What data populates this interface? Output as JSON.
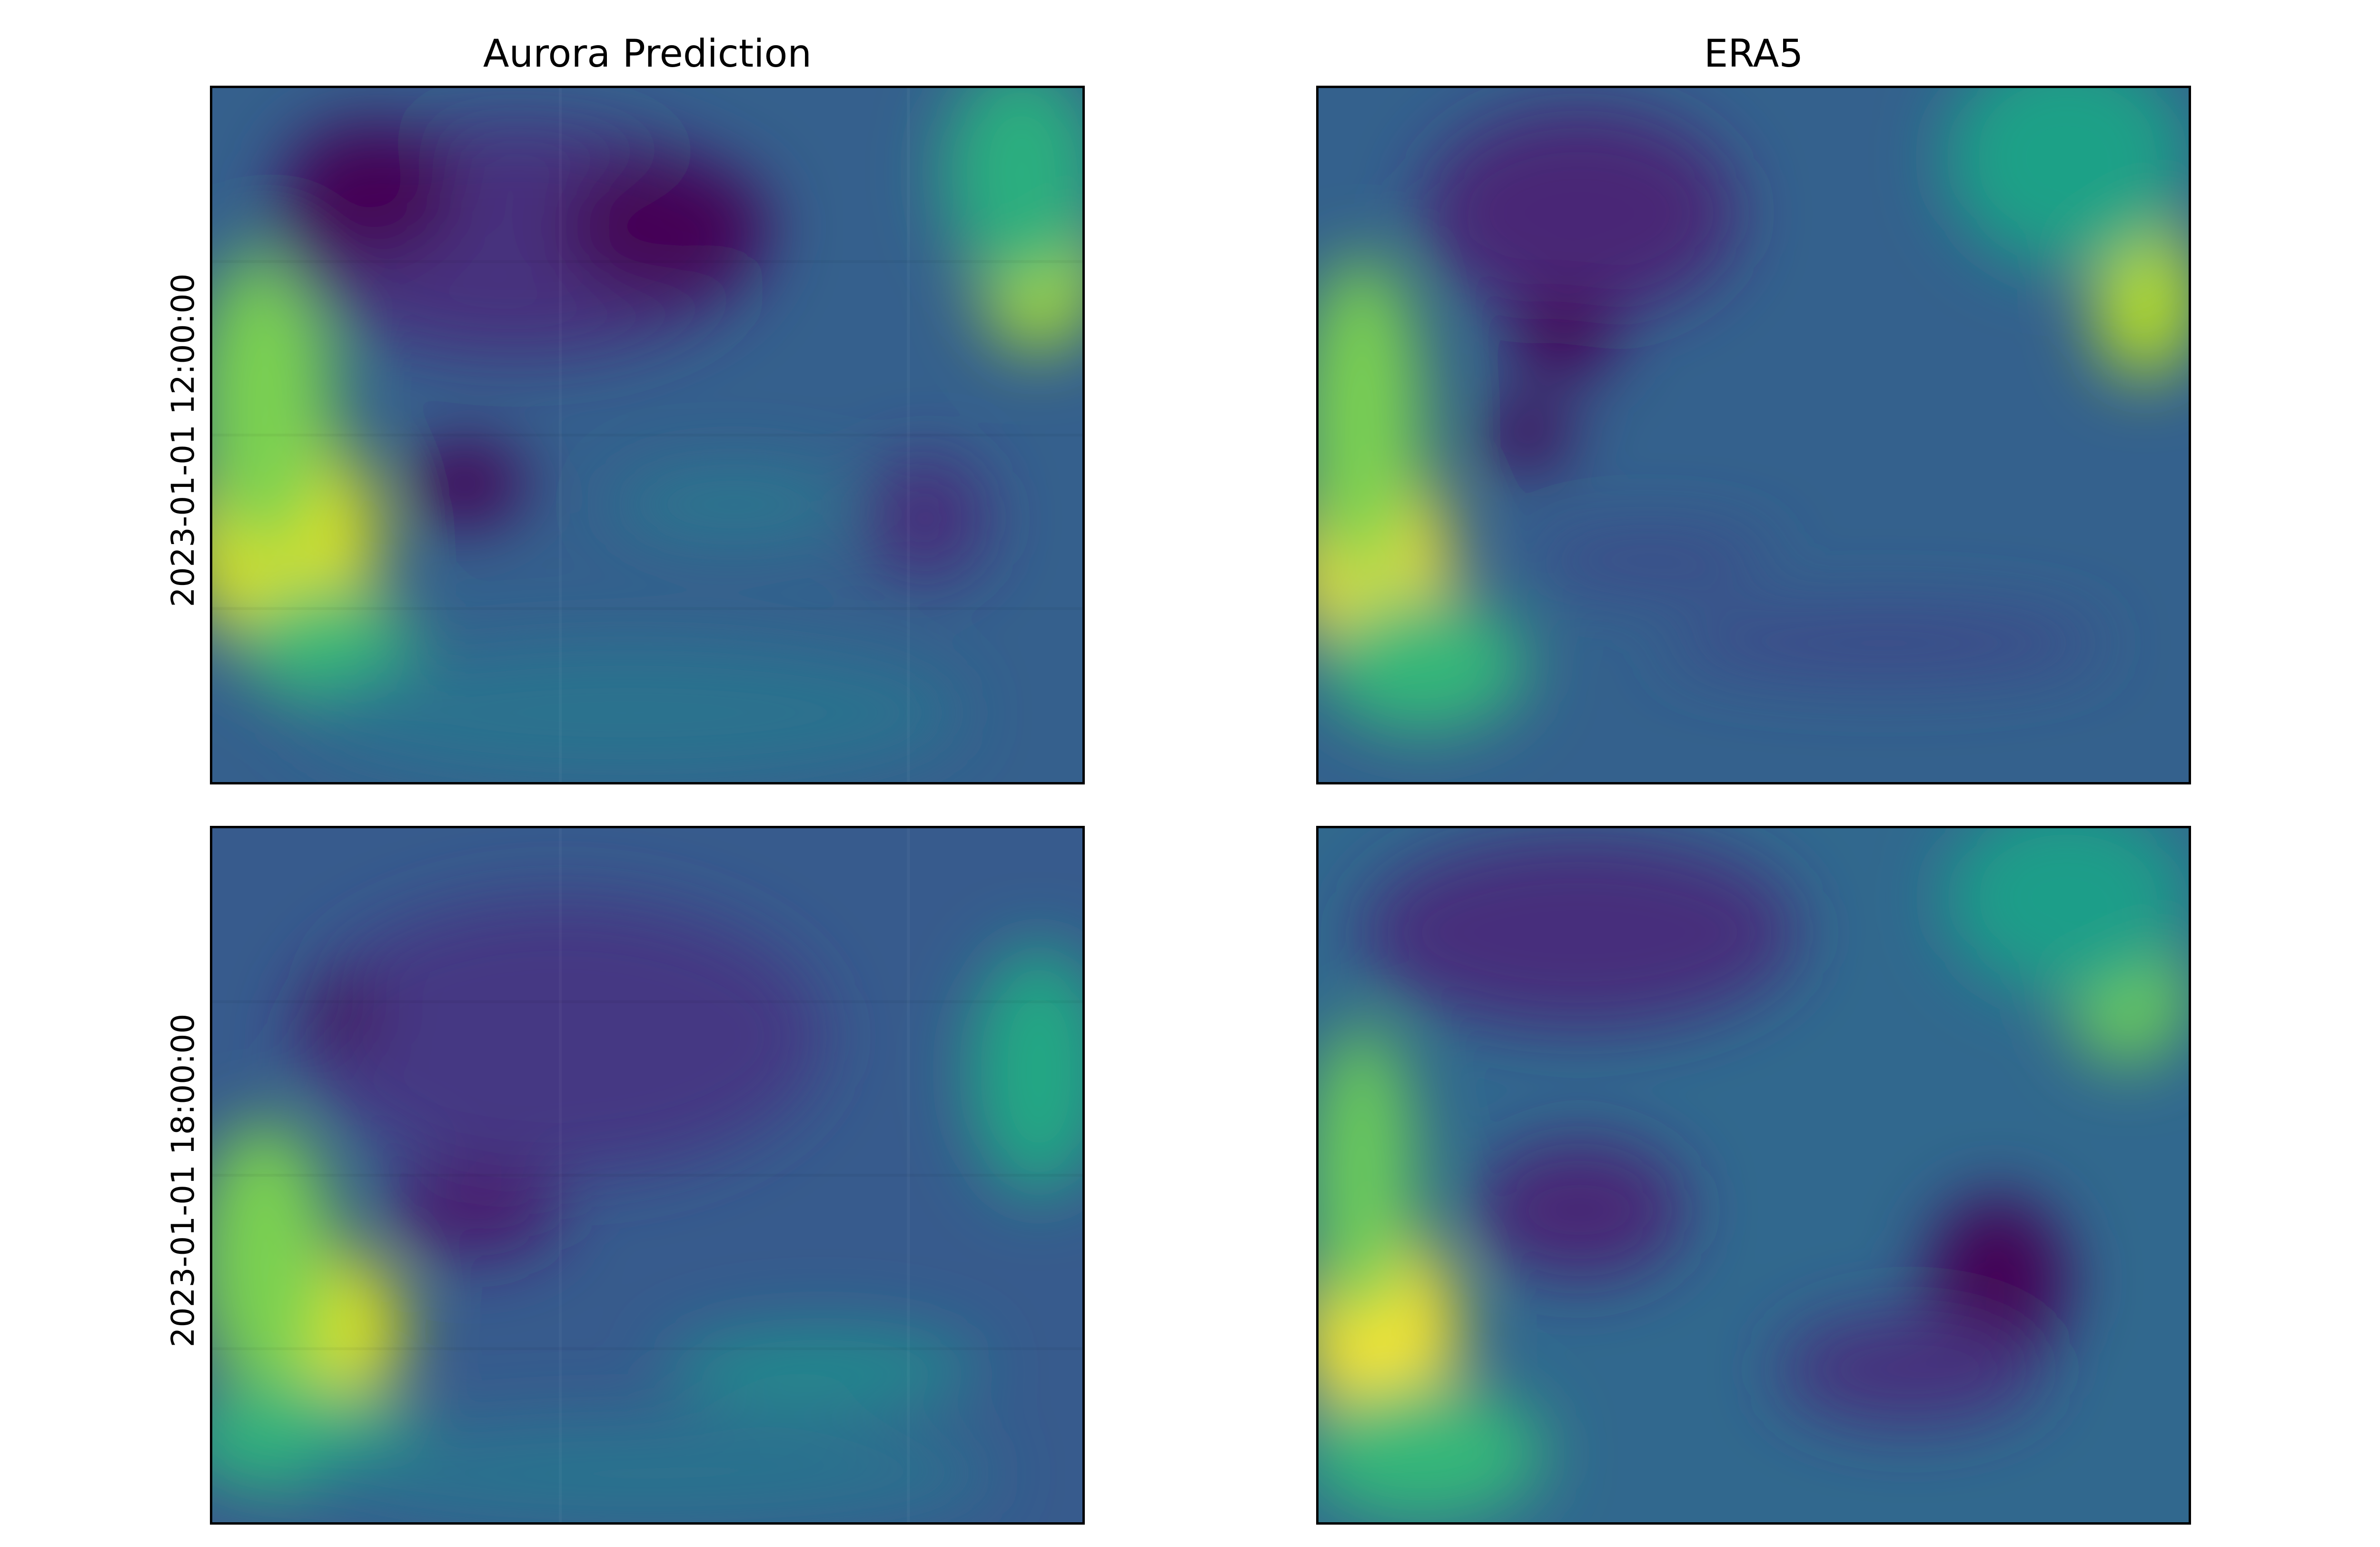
{
  "chart_data": {
    "type": "heatmap",
    "layout": "2x2 grid of images",
    "columns": [
      "Aurora Prediction",
      "ERA5"
    ],
    "rows": [
      "2023-01-01 12:00:00",
      "2023-01-01 18:00:00"
    ],
    "colormap": "viridis",
    "axes_ticks": "none",
    "panels": [
      {
        "column": "Aurora Prediction",
        "row": "2023-01-01 12:00:00",
        "blocky": true,
        "background": "#35608d",
        "blobs": [
          {
            "x": 0.08,
            "y": 0.65,
            "rx": 0.11,
            "ry": 0.17,
            "color": "#dde318"
          },
          {
            "x": 0.06,
            "y": 0.45,
            "rx": 0.08,
            "ry": 0.22,
            "color": "#7ad151"
          },
          {
            "x": 0.13,
            "y": 0.8,
            "rx": 0.1,
            "ry": 0.08,
            "color": "#3bbb75"
          },
          {
            "x": 0.95,
            "y": 0.26,
            "rx": 0.07,
            "ry": 0.12,
            "color": "#a5db36"
          },
          {
            "x": 0.93,
            "y": 0.12,
            "rx": 0.09,
            "ry": 0.16,
            "color": "#29af7f"
          },
          {
            "x": 0.35,
            "y": 0.22,
            "rx": 0.28,
            "ry": 0.17,
            "color": "#46307e"
          },
          {
            "x": 0.18,
            "y": 0.15,
            "rx": 0.1,
            "ry": 0.1,
            "color": "#440154"
          },
          {
            "x": 0.52,
            "y": 0.2,
            "rx": 0.12,
            "ry": 0.1,
            "color": "#440154"
          },
          {
            "x": 0.29,
            "y": 0.57,
            "rx": 0.07,
            "ry": 0.06,
            "color": "#440154"
          },
          {
            "x": 0.82,
            "y": 0.62,
            "rx": 0.07,
            "ry": 0.09,
            "color": "#472d7b"
          },
          {
            "x": 0.6,
            "y": 0.6,
            "rx": 0.14,
            "ry": 0.05,
            "color": "#2a788e"
          },
          {
            "x": 0.48,
            "y": 0.9,
            "rx": 0.38,
            "ry": 0.1,
            "color": "#2c728e"
          }
        ]
      },
      {
        "column": "ERA5",
        "row": "2023-01-01 12:00:00",
        "blocky": false,
        "background": "#34618d",
        "blobs": [
          {
            "x": 0.06,
            "y": 0.68,
            "rx": 0.09,
            "ry": 0.16,
            "color": "#fde725"
          },
          {
            "x": 0.05,
            "y": 0.48,
            "rx": 0.07,
            "ry": 0.24,
            "color": "#7ad151"
          },
          {
            "x": 0.12,
            "y": 0.83,
            "rx": 0.12,
            "ry": 0.1,
            "color": "#35b779"
          },
          {
            "x": 0.95,
            "y": 0.3,
            "rx": 0.06,
            "ry": 0.12,
            "color": "#b5de2b"
          },
          {
            "x": 0.86,
            "y": 0.1,
            "rx": 0.14,
            "ry": 0.16,
            "color": "#1fa187"
          },
          {
            "x": 0.3,
            "y": 0.18,
            "rx": 0.18,
            "ry": 0.15,
            "color": "#482576"
          },
          {
            "x": 0.24,
            "y": 0.5,
            "rx": 0.05,
            "ry": 0.05,
            "color": "#440154"
          },
          {
            "x": 0.28,
            "y": 0.36,
            "rx": 0.06,
            "ry": 0.06,
            "color": "#440154"
          },
          {
            "x": 0.38,
            "y": 0.68,
            "rx": 0.14,
            "ry": 0.04,
            "color": "#3e4989"
          },
          {
            "x": 0.65,
            "y": 0.8,
            "rx": 0.25,
            "ry": 0.05,
            "color": "#3e4989"
          }
        ]
      },
      {
        "column": "Aurora Prediction",
        "row": "2023-01-01 18:00:00",
        "blocky": true,
        "background": "#375b8d",
        "blobs": [
          {
            "x": 0.12,
            "y": 0.72,
            "rx": 0.1,
            "ry": 0.12,
            "color": "#dde318"
          },
          {
            "x": 0.06,
            "y": 0.62,
            "rx": 0.08,
            "ry": 0.2,
            "color": "#7ad151"
          },
          {
            "x": 0.1,
            "y": 0.88,
            "rx": 0.14,
            "ry": 0.08,
            "color": "#2db27d"
          },
          {
            "x": 0.95,
            "y": 0.35,
            "rx": 0.08,
            "ry": 0.18,
            "color": "#22a884"
          },
          {
            "x": 0.7,
            "y": 0.78,
            "rx": 0.18,
            "ry": 0.06,
            "color": "#238a8d"
          },
          {
            "x": 0.4,
            "y": 0.3,
            "rx": 0.3,
            "ry": 0.2,
            "color": "#443983"
          },
          {
            "x": 0.15,
            "y": 0.27,
            "rx": 0.04,
            "ry": 0.05,
            "color": "#440154"
          },
          {
            "x": 0.3,
            "y": 0.55,
            "rx": 0.1,
            "ry": 0.07,
            "color": "#481f70"
          },
          {
            "x": 0.5,
            "y": 0.93,
            "rx": 0.4,
            "ry": 0.08,
            "color": "#2c728e"
          }
        ]
      },
      {
        "column": "ERA5",
        "row": "2023-01-01 18:00:00",
        "blocky": false,
        "background": "#31688e",
        "blobs": [
          {
            "x": 0.07,
            "y": 0.72,
            "rx": 0.09,
            "ry": 0.15,
            "color": "#fde725"
          },
          {
            "x": 0.05,
            "y": 0.5,
            "rx": 0.06,
            "ry": 0.22,
            "color": "#6ccd5a"
          },
          {
            "x": 0.12,
            "y": 0.9,
            "rx": 0.14,
            "ry": 0.1,
            "color": "#35b779"
          },
          {
            "x": 0.93,
            "y": 0.24,
            "rx": 0.07,
            "ry": 0.1,
            "color": "#6ccd5a"
          },
          {
            "x": 0.86,
            "y": 0.1,
            "rx": 0.14,
            "ry": 0.14,
            "color": "#1f9e89"
          },
          {
            "x": 0.3,
            "y": 0.15,
            "rx": 0.25,
            "ry": 0.14,
            "color": "#472d7b"
          },
          {
            "x": 0.78,
            "y": 0.65,
            "rx": 0.08,
            "ry": 0.12,
            "color": "#440154"
          },
          {
            "x": 0.3,
            "y": 0.55,
            "rx": 0.12,
            "ry": 0.1,
            "color": "#482576"
          },
          {
            "x": 0.68,
            "y": 0.78,
            "rx": 0.15,
            "ry": 0.08,
            "color": "#46307e"
          }
        ]
      }
    ]
  }
}
